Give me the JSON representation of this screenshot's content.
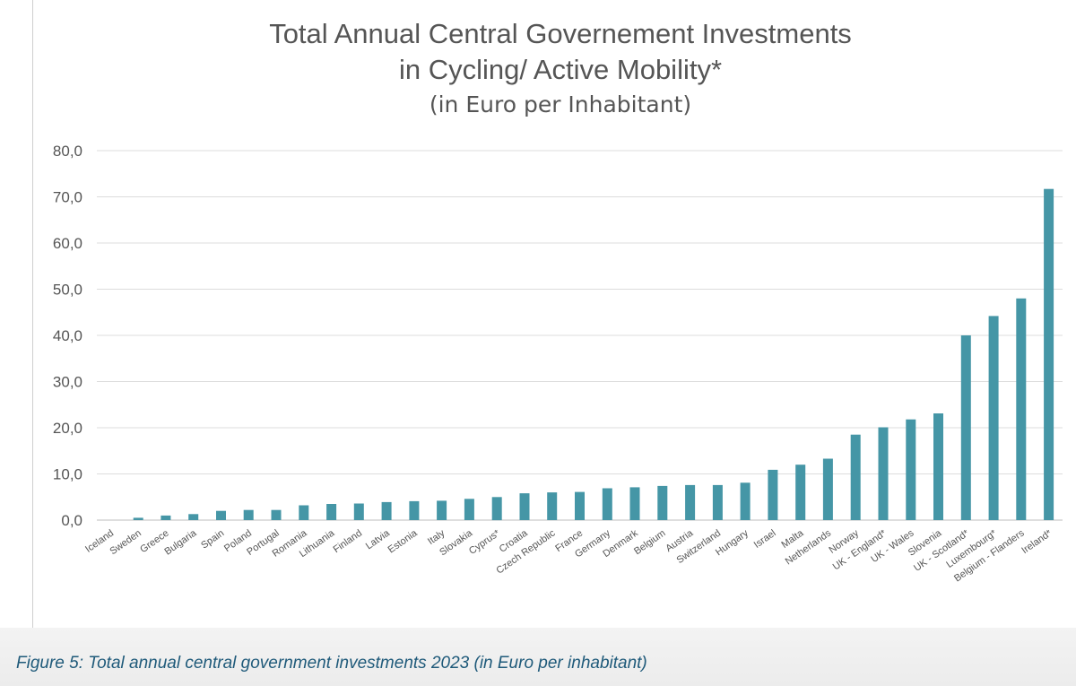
{
  "chart_data": {
    "type": "bar",
    "title": "Total Annual Central Governement Investments",
    "title_line2": "in Cycling/ Active Mobility*",
    "subtitle": "(in Euro per Inhabitant)",
    "xlabel": "",
    "ylabel": "",
    "ylim": [
      0,
      80
    ],
    "yticks": [
      "0,0",
      "10,0",
      "20,0",
      "30,0",
      "40,0",
      "50,0",
      "60,0",
      "70,0",
      "80,0"
    ],
    "grid": true,
    "bar_color": "#4596a6",
    "categories": [
      "Iceland",
      "Sweden",
      "Greece",
      "Bulgaria",
      "Spain",
      "Poland",
      "Portugal",
      "Romania",
      "Lithuania",
      "Finland",
      "Latvia",
      "Estonia",
      "Italy",
      "Slovakia",
      "Cyprus*",
      "Croatia",
      "Czech Republic",
      "France",
      "Germany",
      "Denmark",
      "Belgium",
      "Austria",
      "Switzerland",
      "Hungary",
      "Israel",
      "Malta",
      "Netherlands",
      "Norway",
      "UK - England*",
      "UK - Wales",
      "Slovenia",
      "UK - Scotland*",
      "Luxembourg*",
      "Belgium - Flanders",
      "Ireland*"
    ],
    "values": [
      0.0,
      0.5,
      1.0,
      1.3,
      2.0,
      2.2,
      2.2,
      3.2,
      3.5,
      3.6,
      3.9,
      4.1,
      4.2,
      4.6,
      5.0,
      5.8,
      6.0,
      6.1,
      6.9,
      7.1,
      7.4,
      7.6,
      7.6,
      8.1,
      10.9,
      12.0,
      13.3,
      18.5,
      20.1,
      21.8,
      23.1,
      40.0,
      44.2,
      48.0,
      71.7
    ]
  },
  "caption": "Figure 5: Total annual central government investments 2023 (in Euro per inhabitant)"
}
